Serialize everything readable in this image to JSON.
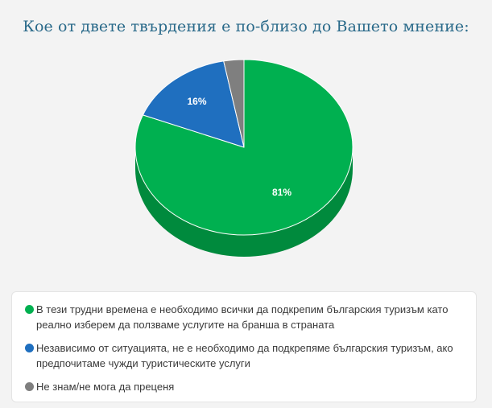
{
  "chart_data": {
    "type": "pie",
    "title": "Кое от двете твърдения е по-близо до Вашето мнение:",
    "slices": [
      {
        "label": "В тези трудни времена е необходимо всички да подкрепим българския туризъм като реално изберем да ползваме услугите на бранша в страната",
        "value": 81,
        "value_label": "81%",
        "color": "#00b050",
        "side_color": "#008a3d"
      },
      {
        "label": "Независимо от ситуацията, не е необходимо да подкрепяме българския туризъм, ако предпочитаме чужди туристическите услуги",
        "value": 16,
        "value_label": "16%",
        "color": "#1f6fbf",
        "side_color": "#17569a"
      },
      {
        "label": "Не знам/не мога да преценя",
        "value": 3,
        "value_label": "",
        "color": "#7f7f7f",
        "side_color": "#5e5e5e"
      }
    ],
    "legend_position": "bottom"
  }
}
